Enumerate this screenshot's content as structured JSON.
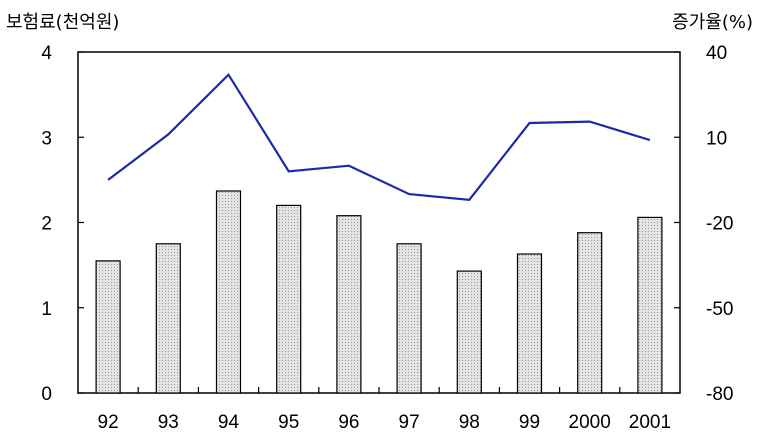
{
  "chart_data": {
    "type": "bar+line",
    "categories": [
      "92",
      "93",
      "94",
      "95",
      "96",
      "97",
      "98",
      "99",
      "2000",
      "2001"
    ],
    "left_axis": {
      "label": "보험료(천억원)",
      "ylim": [
        0,
        4
      ],
      "ticks": [
        "4",
        "3",
        "2",
        "1",
        "0"
      ]
    },
    "right_axis": {
      "label": "증가율(%)",
      "ylim": [
        -80,
        40
      ],
      "ticks": [
        "40",
        "10",
        "-20",
        "-50",
        "-80"
      ]
    },
    "series": [
      {
        "type": "bar",
        "axis": "left",
        "values": [
          1.55,
          1.75,
          2.37,
          2.2,
          2.08,
          1.75,
          1.43,
          1.63,
          1.88,
          2.06
        ]
      },
      {
        "type": "line",
        "axis": "right",
        "values": [
          -5,
          11,
          32,
          -2,
          0,
          -10,
          -12,
          15,
          15.5,
          9
        ]
      }
    ],
    "grid": false,
    "colors": {
      "bar_fill": "#d9d9d9",
      "bar_stroke": "#000000",
      "line": "#1c2aa8"
    }
  }
}
